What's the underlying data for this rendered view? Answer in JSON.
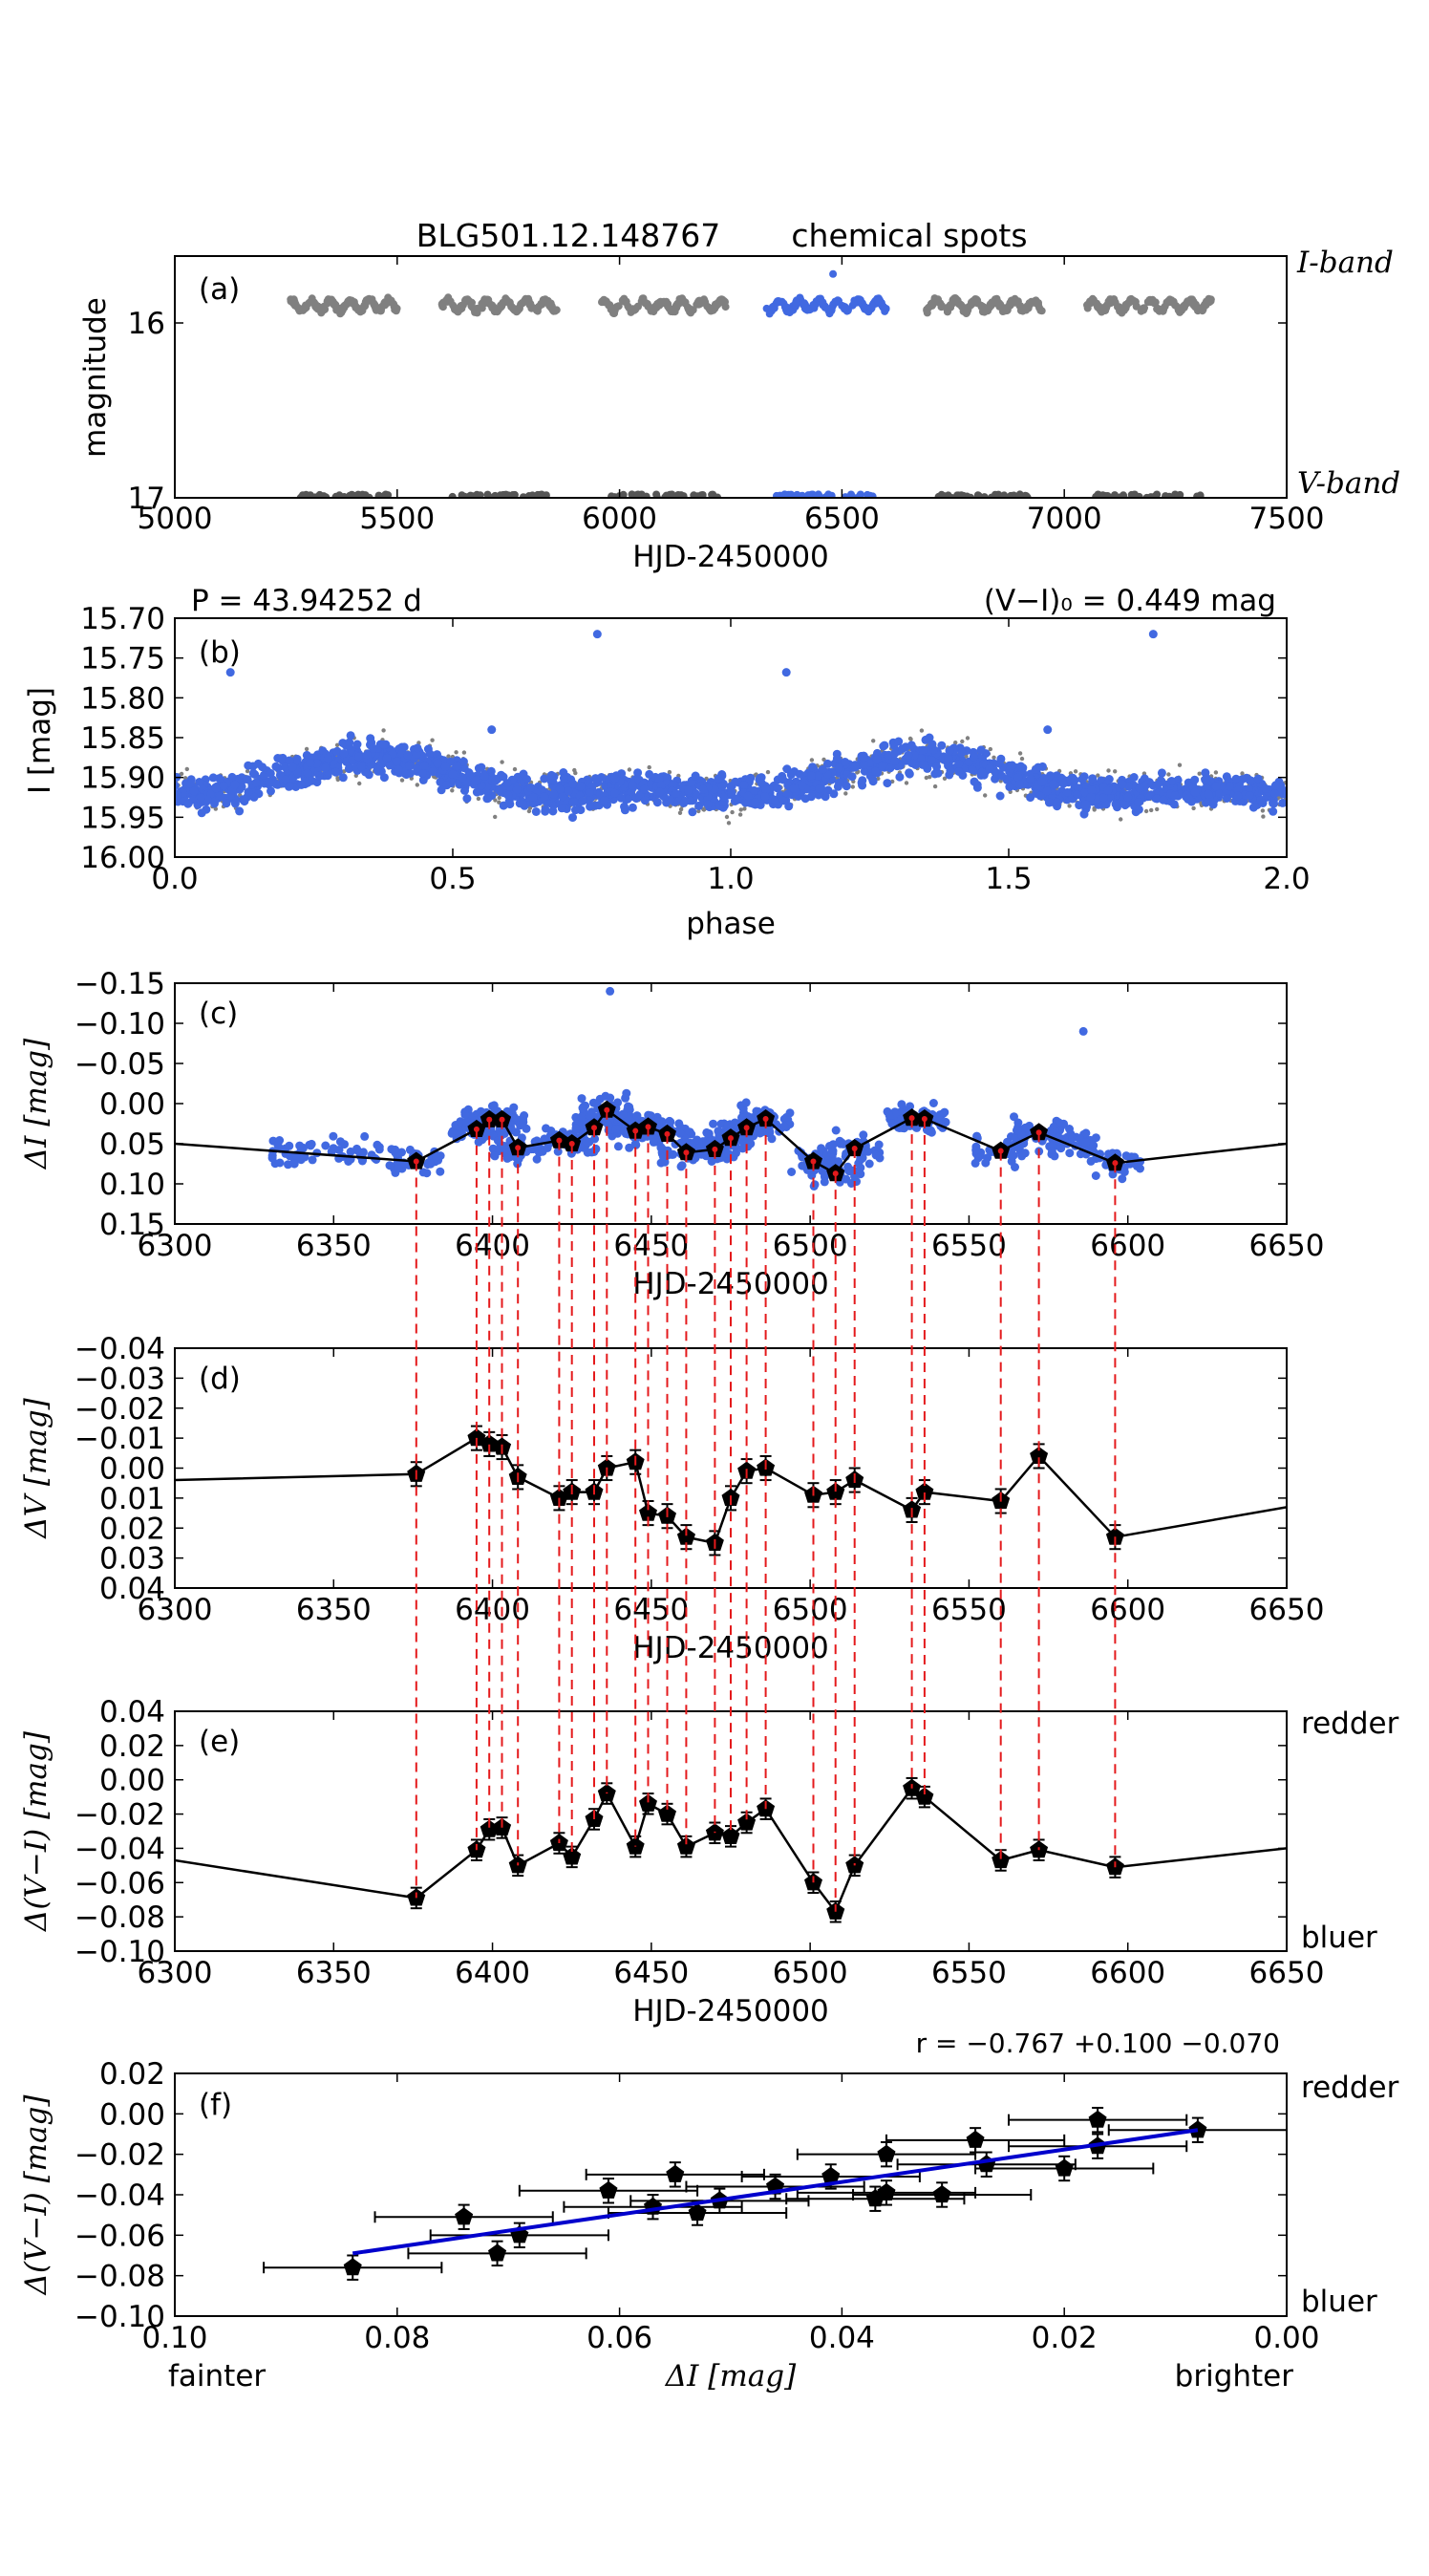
{
  "figure": {
    "title": "BLG501.12.148767",
    "subtitle": "chemical spots",
    "period_label": "P = 43.94252 d",
    "color_label": "(V−I)₀ = 0.449 mag",
    "correlation_label": "r = −0.767 +0.100 −0.070",
    "colors": {
      "primary": "#4169e1",
      "gray": "#808080",
      "darkgray": "#555555",
      "red": "#e41a1c",
      "blue": "#0000cc",
      "black": "#000000"
    }
  },
  "chart_data": [
    {
      "id": "a",
      "type": "scatter",
      "panel_label": "(a)",
      "xlabel": "HJD-2450000",
      "ylabel": "magnitude",
      "xlim": [
        5000,
        7500
      ],
      "ylim": [
        17,
        15.6
      ],
      "xticks": [
        5000,
        5500,
        6000,
        6500,
        7000,
        7500
      ],
      "yticks": [
        16,
        17
      ],
      "right_labels": {
        "top": "I-band",
        "bottom": "V-band"
      },
      "seasons": [
        {
          "x": [
            5260,
            5500
          ],
          "i_mag": 15.9,
          "v_mag": 17.0,
          "highlight": false
        },
        {
          "x": [
            5600,
            5860
          ],
          "i_mag": 15.9,
          "v_mag": 17.0,
          "highlight": false
        },
        {
          "x": [
            5960,
            6240
          ],
          "i_mag": 15.9,
          "v_mag": 17.0,
          "highlight": false
        },
        {
          "x": [
            6330,
            6600
          ],
          "i_mag": 15.9,
          "v_mag": 17.0,
          "highlight": true
        },
        {
          "x": [
            6690,
            6950
          ],
          "i_mag": 15.9,
          "v_mag": 17.0,
          "highlight": false
        },
        {
          "x": [
            7050,
            7330
          ],
          "i_mag": 15.9,
          "v_mag": 17.0,
          "highlight": false
        }
      ]
    },
    {
      "id": "b",
      "type": "scatter",
      "panel_label": "(b)",
      "xlabel": "phase",
      "ylabel": "I [mag]",
      "xlim": [
        0,
        2
      ],
      "ylim": [
        16.0,
        15.7
      ],
      "xticks": [
        "0.0",
        "0.5",
        "1.0",
        "1.5",
        "2.0"
      ],
      "yticks": [
        "15.70",
        "15.75",
        "15.80",
        "15.85",
        "15.90",
        "15.95",
        "16.00"
      ],
      "mean": 15.905,
      "amplitude": 0.035,
      "outliers": [
        [
          0.1,
          15.768
        ],
        [
          0.76,
          15.72
        ],
        [
          1.1,
          15.768
        ],
        [
          1.76,
          15.72
        ],
        [
          0.57,
          15.84
        ],
        [
          1.57,
          15.84
        ]
      ]
    },
    {
      "id": "c",
      "type": "line",
      "panel_label": "(c)",
      "xlabel": "HJD-2450000",
      "ylabel": "ΔI [mag]",
      "xlim": [
        6300,
        6650
      ],
      "ylim": [
        0.15,
        -0.15
      ],
      "xticks": [
        6300,
        6350,
        6400,
        6450,
        6500,
        6550,
        6600,
        6650
      ],
      "yticks": [
        "−0.15",
        "−0.10",
        "−0.05",
        "0.00",
        "0.05",
        "0.10",
        "0.15"
      ],
      "x": [
        6376,
        6395,
        6399,
        6403,
        6408,
        6421,
        6425,
        6432,
        6436,
        6445,
        6449,
        6455,
        6461,
        6470,
        6475,
        6480,
        6486,
        6501,
        6508,
        6514,
        6532,
        6536,
        6560,
        6572,
        6596
      ],
      "values": [
        0.072,
        0.032,
        0.02,
        0.02,
        0.055,
        0.046,
        0.05,
        0.03,
        0.008,
        0.034,
        0.029,
        0.038,
        0.061,
        0.057,
        0.043,
        0.03,
        0.019,
        0.072,
        0.087,
        0.056,
        0.018,
        0.019,
        0.059,
        0.036,
        0.074
      ],
      "line_ends": {
        "left": 0.05,
        "right": 0.05
      },
      "outliers": [
        [
          6437,
          -0.14
        ],
        [
          6586,
          -0.09
        ]
      ]
    },
    {
      "id": "d",
      "type": "line",
      "panel_label": "(d)",
      "xlabel": "HJD-2450000",
      "ylabel": "ΔV [mag]",
      "xlim": [
        6300,
        6650
      ],
      "ylim": [
        0.04,
        -0.04
      ],
      "xticks": [
        6300,
        6350,
        6400,
        6450,
        6500,
        6550,
        6600,
        6650
      ],
      "yticks": [
        "−0.04",
        "−0.03",
        "−0.02",
        "−0.01",
        "0.00",
        "0.01",
        "0.02",
        "0.03",
        "0.04"
      ],
      "x": [
        6376,
        6395,
        6399,
        6403,
        6408,
        6421,
        6425,
        6432,
        6436,
        6445,
        6449,
        6455,
        6461,
        6470,
        6475,
        6480,
        6486,
        6501,
        6508,
        6514,
        6532,
        6536,
        6560,
        6572,
        6596
      ],
      "values": [
        0.002,
        -0.01,
        -0.008,
        -0.007,
        0.003,
        0.01,
        0.008,
        0.008,
        0.0,
        -0.002,
        0.015,
        0.016,
        0.023,
        0.025,
        0.01,
        0.001,
        0.0,
        0.009,
        0.008,
        0.004,
        0.014,
        0.008,
        0.011,
        -0.004,
        0.023
      ],
      "errors": 0.004,
      "line_ends": {
        "left": 0.004,
        "right": 0.013
      }
    },
    {
      "id": "e",
      "type": "line",
      "panel_label": "(e)",
      "xlabel": "HJD-2450000",
      "ylabel": "Δ(V−I) [mag]",
      "xlim": [
        6300,
        6650
      ],
      "ylim": [
        -0.1,
        0.04
      ],
      "xticks": [
        6300,
        6350,
        6400,
        6450,
        6500,
        6550,
        6600,
        6650
      ],
      "yticks": [
        "0.04",
        "0.02",
        "0.00",
        "−0.02",
        "−0.04",
        "−0.06",
        "−0.08",
        "−0.10"
      ],
      "right_labels": {
        "top": "redder",
        "bottom": "bluer"
      },
      "x": [
        6376,
        6395,
        6399,
        6403,
        6408,
        6421,
        6425,
        6432,
        6436,
        6445,
        6449,
        6455,
        6461,
        6470,
        6475,
        6480,
        6486,
        6501,
        6508,
        6514,
        6532,
        6536,
        6560,
        6572,
        6596
      ],
      "values": [
        -0.069,
        -0.041,
        -0.029,
        -0.028,
        -0.05,
        -0.037,
        -0.045,
        -0.023,
        -0.008,
        -0.039,
        -0.014,
        -0.02,
        -0.039,
        -0.031,
        -0.033,
        -0.025,
        -0.017,
        -0.06,
        -0.077,
        -0.05,
        -0.005,
        -0.01,
        -0.047,
        -0.041,
        -0.051
      ],
      "errors": 0.006,
      "line_ends": {
        "left": -0.047,
        "right": -0.04
      }
    },
    {
      "id": "f",
      "type": "scatter",
      "panel_label": "(f)",
      "xlabel": "ΔI [mag]",
      "ylabel": "Δ(V−I) [mag]",
      "xlim": [
        0.1,
        0.0
      ],
      "ylim": [
        -0.1,
        0.02
      ],
      "xticks": [
        "0.10",
        "0.08",
        "0.06",
        "0.04",
        "0.02",
        "0.00"
      ],
      "yticks": [
        "0.02",
        "0.00",
        "−0.02",
        "−0.04",
        "−0.06",
        "−0.08",
        "−0.10"
      ],
      "right_labels": {
        "top": "redder",
        "bottom": "bluer"
      },
      "bottom_labels": {
        "left": "fainter",
        "right": "brighter"
      },
      "x": [
        0.084,
        0.074,
        0.071,
        0.069,
        0.061,
        0.057,
        0.055,
        0.053,
        0.051,
        0.046,
        0.041,
        0.037,
        0.036,
        0.036,
        0.031,
        0.028,
        0.027,
        0.02,
        0.017,
        0.017,
        0.008
      ],
      "values": [
        -0.076,
        -0.051,
        -0.069,
        -0.06,
        -0.038,
        -0.046,
        -0.03,
        -0.049,
        -0.043,
        -0.036,
        -0.031,
        -0.042,
        -0.039,
        -0.02,
        -0.04,
        -0.013,
        -0.025,
        -0.027,
        -0.016,
        -0.003,
        -0.008
      ],
      "x_error": 0.008,
      "y_error": 0.006,
      "fit": {
        "x": [
          0.084,
          0.008
        ],
        "y": [
          -0.069,
          -0.008
        ]
      }
    }
  ]
}
